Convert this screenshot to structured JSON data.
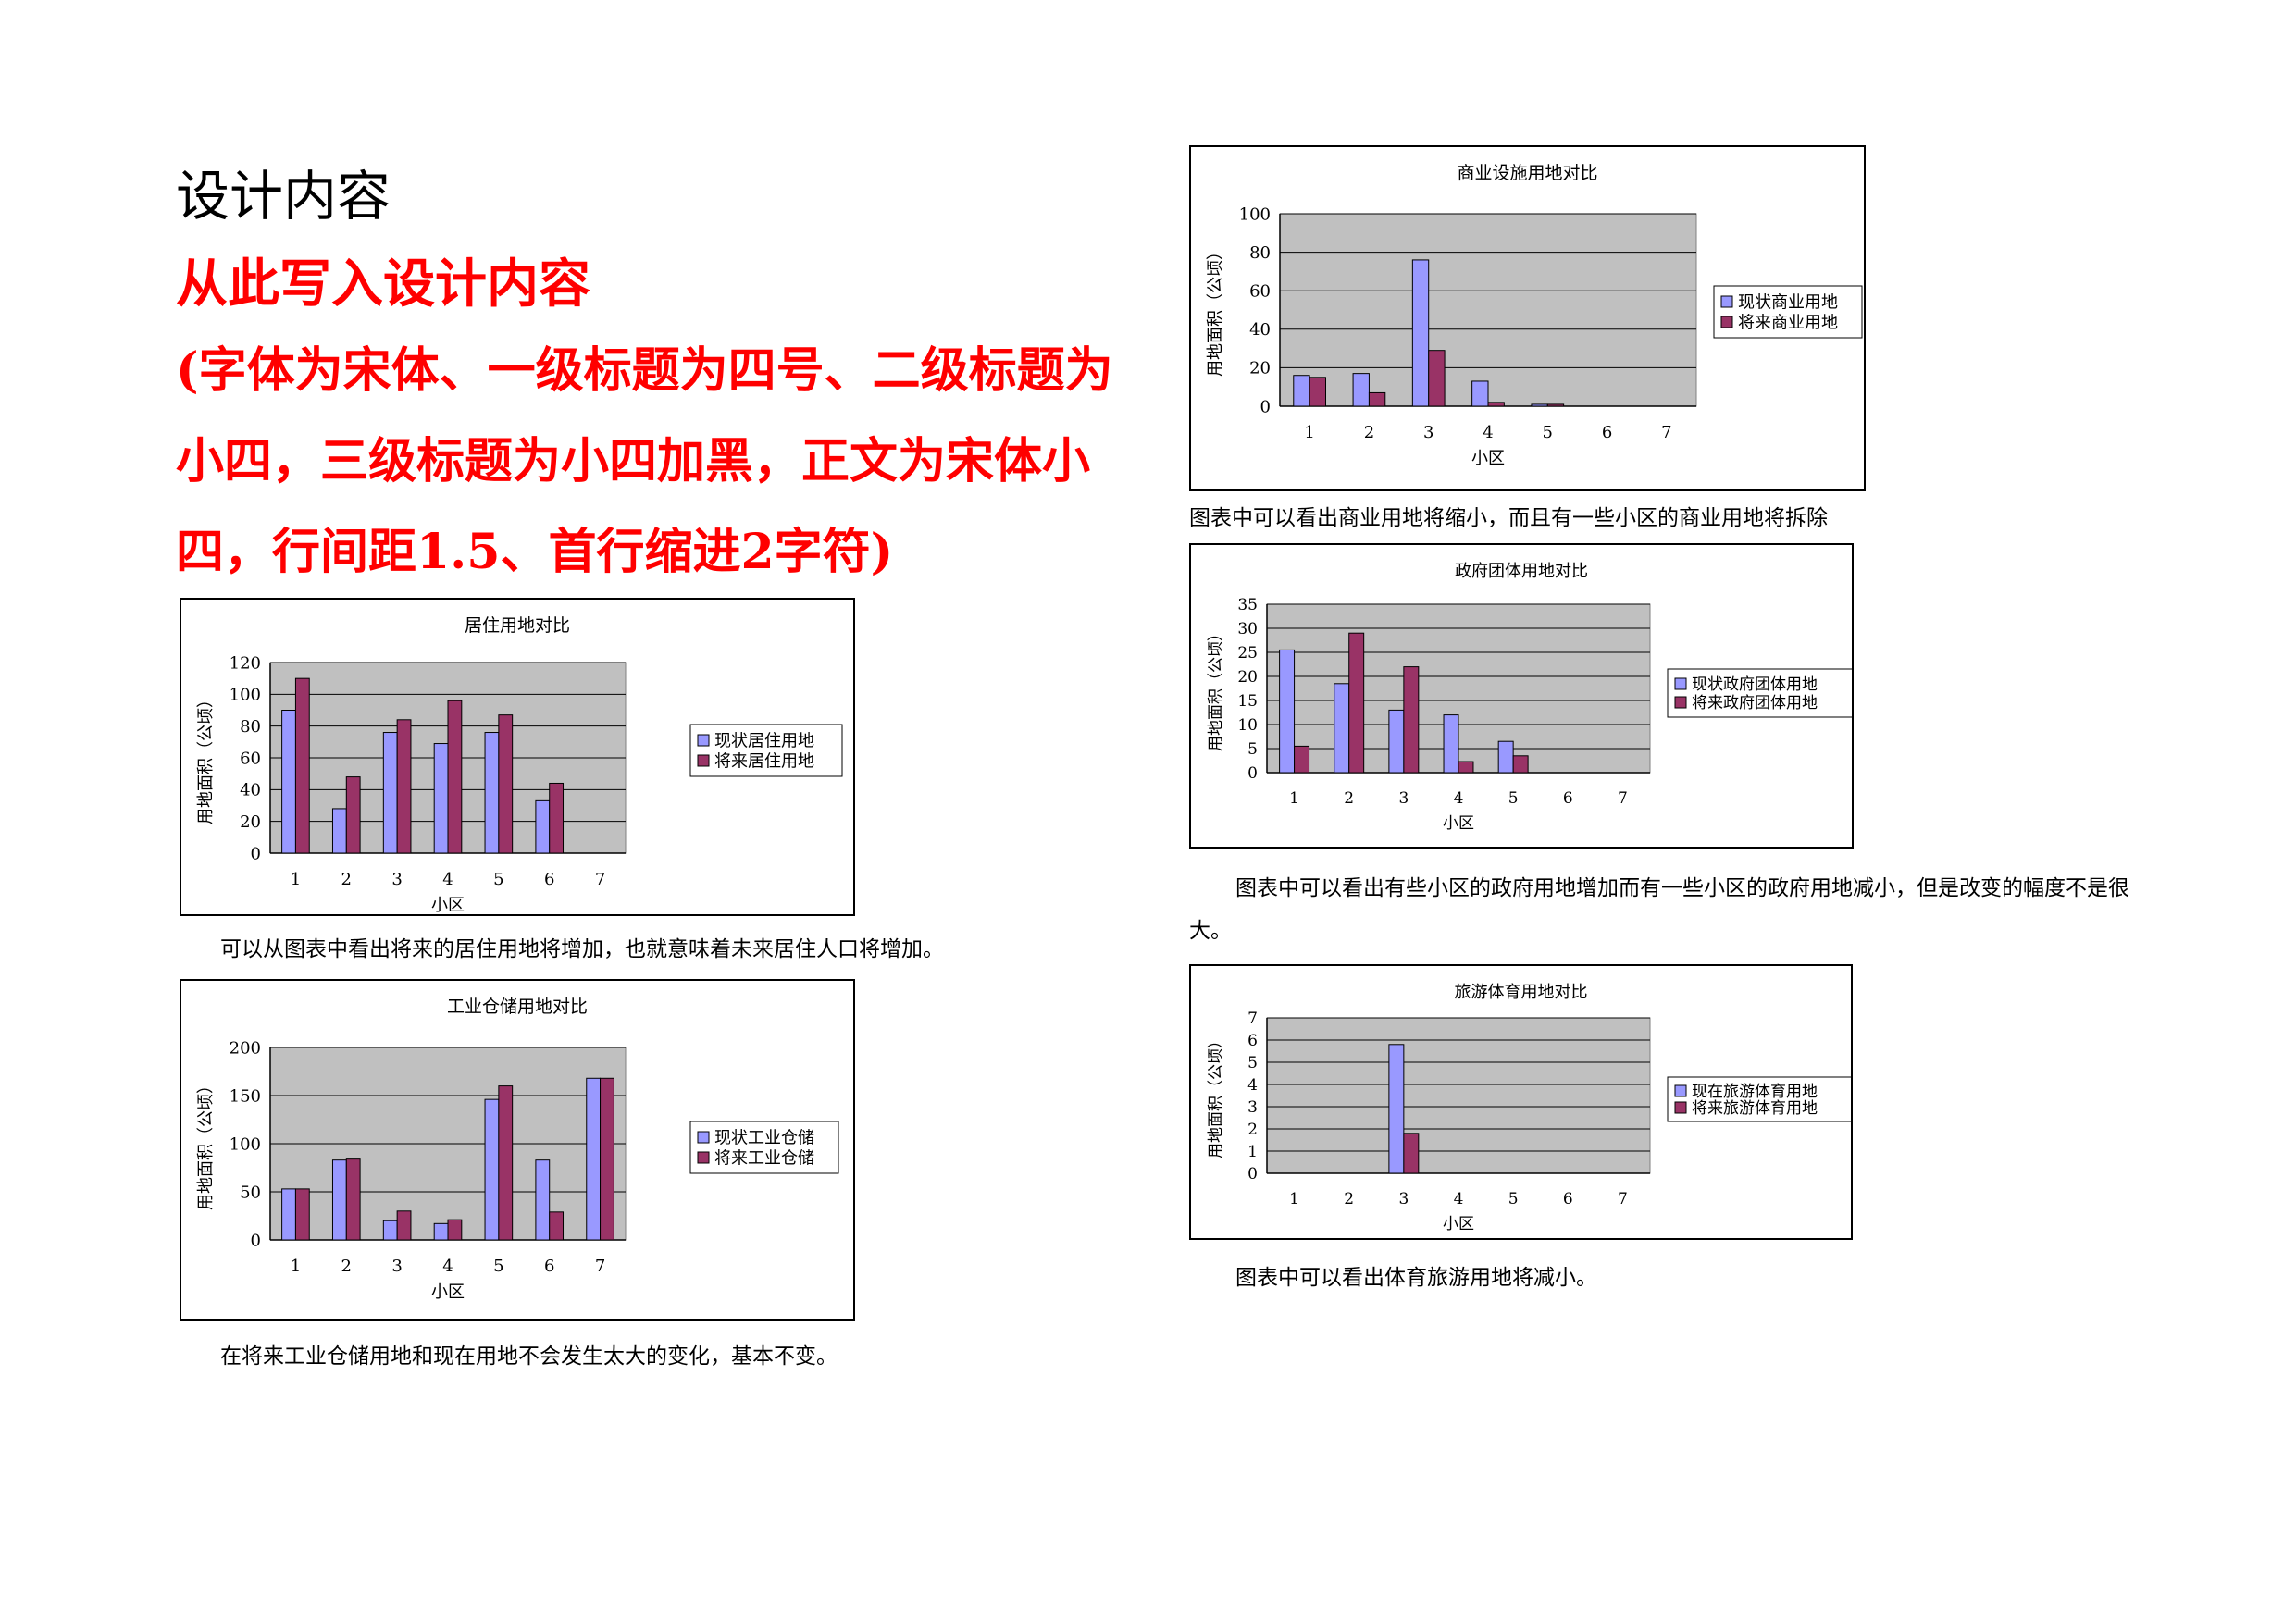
{
  "page": {
    "heading": "设计内容",
    "red_title": "从此写入设计内容",
    "red_note": "(字体为宋体、一级标题为四号、二级标题为小四，三级标题为小四加黑，正文为宋体小四，行间距1.5、首行缩进2字符)"
  },
  "captions": {
    "residential": "可以从图表中看出将来的居住用地将增加，也就意味着未来居住人口将增加。",
    "industrial": "在将来工业仓储用地和现在用地不会发生太大的变化，基本不变。",
    "commercial": "图表中可以看出商业用地将缩小，而且有一些小区的商业用地将拆除",
    "government": "图表中可以看出有些小区的政府用地增加而有一些小区的政府用地减小，但是改变的幅度不是很大。",
    "tourism": "图表中可以看出体育旅游用地将减小。"
  },
  "colors": {
    "current": "#9999ff",
    "future": "#993366",
    "plot_bg": "#c0c0c0"
  },
  "chart_data": [
    {
      "id": "residential",
      "type": "bar",
      "title": "居住用地对比",
      "xlabel": "小区",
      "ylabel": "用地面积（公顷）",
      "categories": [
        "1",
        "2",
        "3",
        "4",
        "5",
        "6",
        "7"
      ],
      "ylim": [
        0,
        120
      ],
      "yticks": [
        0,
        20,
        40,
        60,
        80,
        100,
        120
      ],
      "series": [
        {
          "name": "现状居住用地",
          "values": [
            90,
            28,
            76,
            69,
            76,
            33,
            null
          ]
        },
        {
          "name": "将来居住用地",
          "values": [
            110,
            48,
            84,
            96,
            87,
            44,
            null
          ]
        }
      ]
    },
    {
      "id": "industrial",
      "type": "bar",
      "title": "工业仓储用地对比",
      "xlabel": "小区",
      "ylabel": "用地面积（公顷）",
      "categories": [
        "1",
        "2",
        "3",
        "4",
        "5",
        "6",
        "7"
      ],
      "ylim": [
        0,
        200
      ],
      "yticks": [
        0,
        50,
        100,
        150,
        200
      ],
      "series": [
        {
          "name": "现状工业仓储",
          "values": [
            53,
            83,
            20,
            17,
            146,
            83,
            168
          ]
        },
        {
          "name": "将来工业仓储",
          "values": [
            53,
            84,
            30,
            21,
            160,
            29,
            168
          ]
        }
      ]
    },
    {
      "id": "commercial",
      "type": "bar",
      "title": "商业设施用地对比",
      "xlabel": "小区",
      "ylabel": "用地面积（公顷）",
      "categories": [
        "1",
        "2",
        "3",
        "4",
        "5",
        "6",
        "7"
      ],
      "ylim": [
        0,
        100
      ],
      "yticks": [
        0,
        20,
        40,
        60,
        80,
        100
      ],
      "series": [
        {
          "name": "现状商业用地",
          "values": [
            16,
            17,
            76,
            13,
            1,
            null,
            null
          ]
        },
        {
          "name": "将来商业用地",
          "values": [
            15,
            7,
            29,
            2,
            1,
            null,
            null
          ]
        }
      ]
    },
    {
      "id": "government",
      "type": "bar",
      "title": "政府团体用地对比",
      "xlabel": "小区",
      "ylabel": "用地面积（公顷）",
      "categories": [
        "1",
        "2",
        "3",
        "4",
        "5",
        "6",
        "7"
      ],
      "ylim": [
        0,
        35
      ],
      "yticks": [
        0,
        5,
        10,
        15,
        20,
        25,
        30,
        35
      ],
      "series": [
        {
          "name": "现状政府团体用地",
          "values": [
            25.5,
            18.5,
            13,
            12,
            6.5,
            null,
            null
          ]
        },
        {
          "name": "将来政府团体用地",
          "values": [
            5.5,
            29,
            22,
            2.3,
            3.5,
            null,
            null
          ]
        }
      ]
    },
    {
      "id": "tourism",
      "type": "bar",
      "title": "旅游体育用地对比",
      "xlabel": "小区",
      "ylabel": "用地面积（公顷）",
      "categories": [
        "1",
        "2",
        "3",
        "4",
        "5",
        "6",
        "7"
      ],
      "ylim": [
        0,
        7
      ],
      "yticks": [
        0,
        1,
        2,
        3,
        4,
        5,
        6,
        7
      ],
      "series": [
        {
          "name": "现在旅游体育用地",
          "values": [
            null,
            null,
            5.8,
            null,
            null,
            null,
            null
          ]
        },
        {
          "name": "将来旅游体育用地",
          "values": [
            null,
            null,
            1.8,
            null,
            null,
            null,
            null
          ]
        }
      ]
    }
  ]
}
